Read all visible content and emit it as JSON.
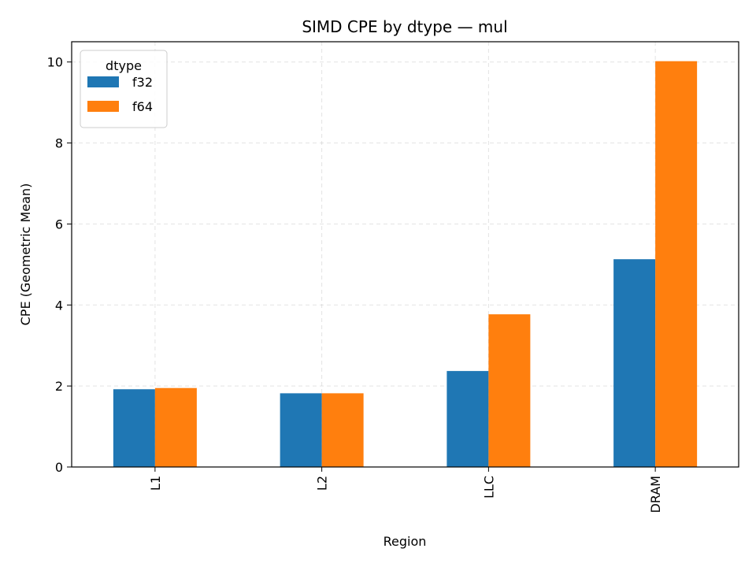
{
  "chart_data": {
    "type": "bar",
    "title": "SIMD CPE by dtype — mul",
    "xlabel": "Region",
    "ylabel": "CPE (Geometric Mean)",
    "categories": [
      "L1",
      "L2",
      "LLC",
      "DRAM"
    ],
    "series": [
      {
        "name": "f32",
        "color": "#1f77b4",
        "values": [
          1.92,
          1.82,
          2.37,
          5.13
        ]
      },
      {
        "name": "f64",
        "color": "#ff7f0e",
        "values": [
          1.95,
          1.82,
          3.77,
          10.02
        ]
      }
    ],
    "ylim": [
      0,
      10.5
    ],
    "yticks": [
      "0",
      "2",
      "4",
      "6",
      "8",
      "10"
    ],
    "grid": true,
    "legend": {
      "title": "dtype",
      "placement": "top-left"
    },
    "xtick_rotation": 90
  }
}
